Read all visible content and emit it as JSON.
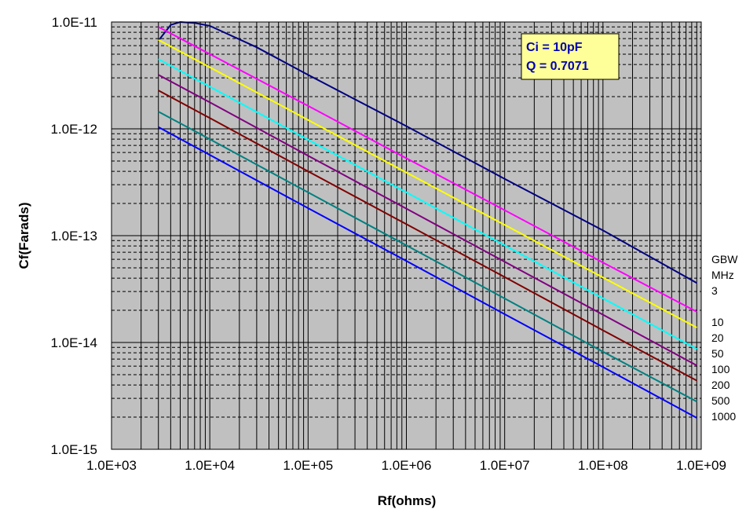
{
  "chart_data": {
    "type": "line",
    "title": "",
    "xlabel": "Rf(ohms)",
    "ylabel": "Cf(Farads)",
    "x_scale": "log",
    "y_scale": "log",
    "xlim": [
      1000.0,
      1000000000.0
    ],
    "ylim": [
      1e-15,
      1e-11
    ],
    "grid": true,
    "x_tick_labels": [
      "1.0E+03",
      "1.0E+04",
      "1.0E+05",
      "1.0E+06",
      "1.0E+07",
      "1.0E+08",
      "1.0E+09"
    ],
    "y_tick_labels": [
      "1.0E-11",
      "1.0E-12",
      "1.0E-13",
      "1.0E-14",
      "1.0E-15"
    ],
    "annotation_box": [
      "Ci = 10pF",
      "Q = 0.7071"
    ],
    "legend_header": [
      "GBW",
      "MHz"
    ],
    "x": [
      3000.0,
      10000.0,
      100000.0,
      1000000.0,
      10000000.0,
      100000000.0,
      900000000.0
    ],
    "series": [
      {
        "name": "3",
        "color": "#000080",
        "x": [
          3000.0,
          4000.0,
          5000.0,
          7000.0,
          10000.0,
          30000.0,
          100000.0,
          1000000.0,
          10000000.0,
          100000000.0,
          900000000.0
        ],
        "values": [
          6.7e-12,
          9.4e-12,
          1e-11,
          9.8e-12,
          9.2e-12,
          5.8e-12,
          3.2e-12,
          1.06e-12,
          3.4e-13,
          1.12e-13,
          3.6e-14
        ]
      },
      {
        "name": "10",
        "color": "#ff00ff",
        "values": [
          9e-12,
          5e-12,
          1.64e-12,
          5.3e-13,
          1.73e-13,
          5.6e-14,
          1.94e-14
        ]
      },
      {
        "name": "20",
        "color": "#ffff00",
        "values": [
          6.8e-12,
          3.77e-12,
          1.21e-12,
          3.9e-13,
          1.26e-13,
          4.06e-14,
          1.38e-14
        ]
      },
      {
        "name": "50",
        "color": "#00ffff",
        "values": [
          4.5e-12,
          2.48e-12,
          7.9e-13,
          2.54e-13,
          8.1e-14,
          2.59e-14,
          8.7e-15
        ]
      },
      {
        "name": "100",
        "color": "#800080",
        "values": [
          3.2e-12,
          1.77e-12,
          5.6e-13,
          1.79e-13,
          5.7e-14,
          1.82e-14,
          6.1e-15
        ]
      },
      {
        "name": "200",
        "color": "#800000",
        "values": [
          2.29e-12,
          1.26e-12,
          4e-13,
          1.28e-13,
          4.1e-14,
          1.3e-14,
          4.4e-15
        ]
      },
      {
        "name": "500",
        "color": "#008080",
        "values": [
          1.45e-12,
          8e-13,
          2.54e-13,
          8.1e-14,
          2.58e-14,
          8.2e-15,
          2.8e-15
        ]
      },
      {
        "name": "1000",
        "color": "#0000ff",
        "values": [
          1.04e-12,
          5.7e-13,
          1.81e-13,
          5.8e-14,
          1.84e-14,
          5.9e-15,
          1.97e-15
        ]
      }
    ]
  }
}
